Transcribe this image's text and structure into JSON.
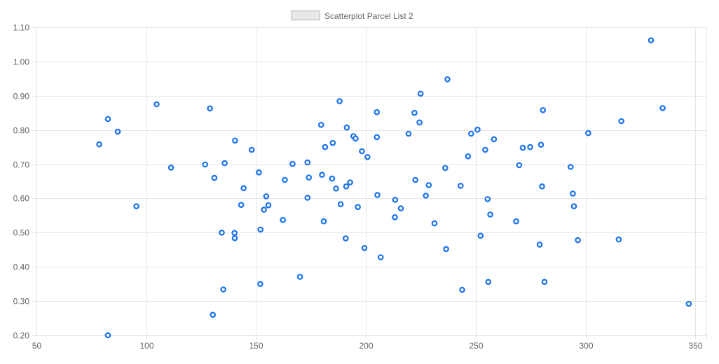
{
  "chart_data": {
    "type": "scatter",
    "legend": {
      "position": "top",
      "label": "Scatterplot Parcel List 2"
    },
    "x_axis": {
      "min": 50,
      "max": 355,
      "ticks": [
        50,
        100,
        150,
        200,
        250,
        300,
        350
      ],
      "tick_labels": [
        "50",
        "100",
        "150",
        "200",
        "250",
        "300",
        "350"
      ]
    },
    "y_axis": {
      "min": 0.2,
      "max": 1.1,
      "ticks": [
        0.2,
        0.3,
        0.4,
        0.5,
        0.6,
        0.7,
        0.8,
        0.9,
        1.0,
        1.1
      ],
      "tick_labels": [
        "0.20",
        "0.30",
        "0.40",
        "0.50",
        "0.60",
        "0.70",
        "0.80",
        "0.90",
        "1.00",
        "1.10"
      ]
    },
    "grid": true,
    "colors": {
      "point_stroke": "#1a73e8",
      "point_fill": "#ffffff",
      "grid": "#e6e6e6",
      "legend_box_fill": "#e8e8e8",
      "legend_box_stroke": "#c8c8c8"
    },
    "series": [
      {
        "name": "Scatterplot Parcel List 2",
        "points": [
          [
            78.6,
            0.758
          ],
          [
            82.5,
            0.832
          ],
          [
            82.5,
            0.2
          ],
          [
            87.0,
            0.795
          ],
          [
            95.5,
            0.577
          ],
          [
            104.7,
            0.875
          ],
          [
            111.3,
            0.69
          ],
          [
            126.8,
            0.699
          ],
          [
            129.0,
            0.863
          ],
          [
            130.3,
            0.26
          ],
          [
            131.0,
            0.66
          ],
          [
            134.4,
            0.5
          ],
          [
            135.1,
            0.334
          ],
          [
            135.7,
            0.703
          ],
          [
            140.2,
            0.499
          ],
          [
            140.3,
            0.484
          ],
          [
            140.4,
            0.769
          ],
          [
            143.2,
            0.581
          ],
          [
            144.3,
            0.63
          ],
          [
            148.0,
            0.742
          ],
          [
            151.3,
            0.676
          ],
          [
            152.0,
            0.509
          ],
          [
            151.9,
            0.35
          ],
          [
            153.6,
            0.567
          ],
          [
            154.6,
            0.606
          ],
          [
            155.6,
            0.58
          ],
          [
            162.2,
            0.537
          ],
          [
            163.1,
            0.654
          ],
          [
            166.6,
            0.701
          ],
          [
            170.0,
            0.371
          ],
          [
            173.4,
            0.705
          ],
          [
            173.4,
            0.602
          ],
          [
            174.0,
            0.661
          ],
          [
            179.6,
            0.815
          ],
          [
            180.0,
            0.669
          ],
          [
            180.8,
            0.533
          ],
          [
            181.4,
            0.75
          ],
          [
            184.6,
            0.658
          ],
          [
            184.9,
            0.762
          ],
          [
            186.4,
            0.629
          ],
          [
            188.0,
            0.884
          ],
          [
            188.5,
            0.583
          ],
          [
            190.8,
            0.483
          ],
          [
            191.0,
            0.635
          ],
          [
            191.3,
            0.807
          ],
          [
            192.8,
            0.647
          ],
          [
            194.3,
            0.782
          ],
          [
            195.3,
            0.775
          ],
          [
            196.3,
            0.575
          ],
          [
            198.2,
            0.738
          ],
          [
            199.3,
            0.455
          ],
          [
            200.7,
            0.721
          ],
          [
            205.0,
            0.852
          ],
          [
            205.0,
            0.779
          ],
          [
            205.2,
            0.61
          ],
          [
            206.7,
            0.428
          ],
          [
            213.3,
            0.596
          ],
          [
            213.2,
            0.545
          ],
          [
            215.9,
            0.571
          ],
          [
            219.4,
            0.789
          ],
          [
            222.1,
            0.85
          ],
          [
            222.5,
            0.654
          ],
          [
            224.4,
            0.822
          ],
          [
            224.9,
            0.906
          ],
          [
            227.3,
            0.608
          ],
          [
            228.6,
            0.639
          ],
          [
            231.2,
            0.527
          ],
          [
            236.1,
            0.689
          ],
          [
            236.5,
            0.452
          ],
          [
            237.1,
            0.948
          ],
          [
            243.1,
            0.637
          ],
          [
            243.8,
            0.333
          ],
          [
            246.5,
            0.723
          ],
          [
            247.9,
            0.789
          ],
          [
            250.8,
            0.801
          ],
          [
            252.2,
            0.491
          ],
          [
            254.3,
            0.742
          ],
          [
            255.4,
            0.598
          ],
          [
            255.7,
            0.356
          ],
          [
            256.6,
            0.553
          ],
          [
            258.3,
            0.773
          ],
          [
            268.4,
            0.533
          ],
          [
            269.8,
            0.697
          ],
          [
            271.4,
            0.748
          ],
          [
            274.8,
            0.75
          ],
          [
            279.1,
            0.465
          ],
          [
            279.7,
            0.757
          ],
          [
            280.2,
            0.635
          ],
          [
            280.6,
            0.858
          ],
          [
            281.3,
            0.356
          ],
          [
            293.2,
            0.692
          ],
          [
            294.2,
            0.614
          ],
          [
            294.7,
            0.577
          ],
          [
            296.5,
            0.478
          ],
          [
            301.2,
            0.791
          ],
          [
            315.1,
            0.48
          ],
          [
            316.3,
            0.826
          ],
          [
            329.8,
            1.062
          ],
          [
            335.1,
            0.864
          ],
          [
            347.0,
            0.292
          ]
        ]
      }
    ]
  }
}
